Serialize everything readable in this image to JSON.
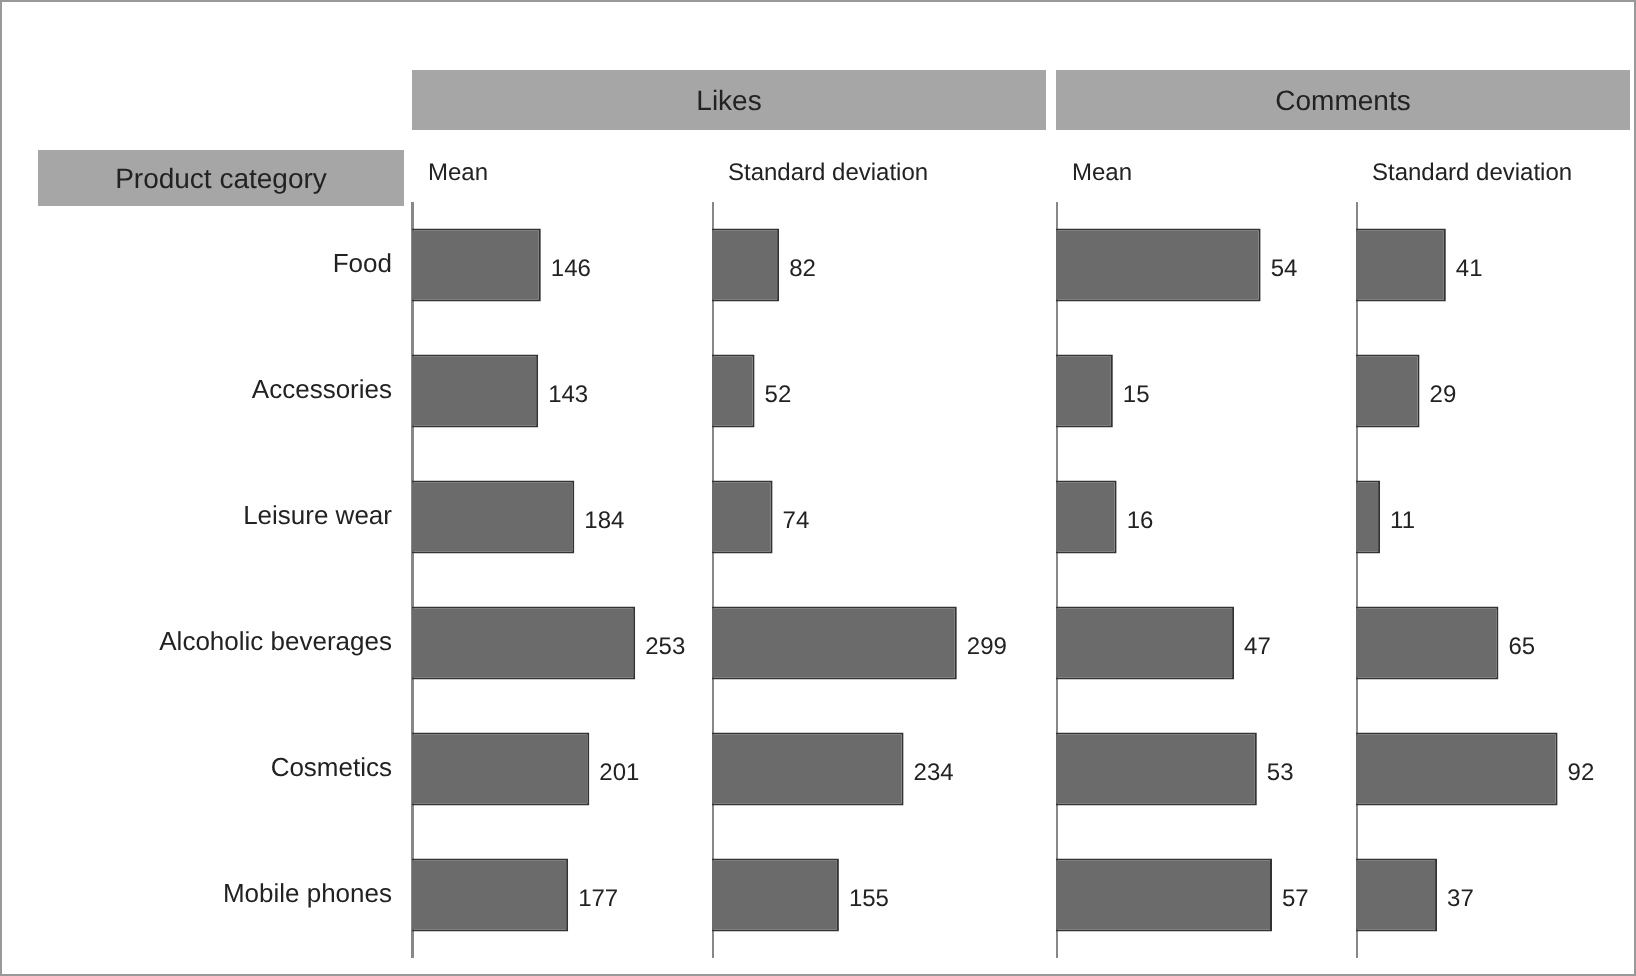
{
  "chart_data": [
    {
      "type": "bar",
      "orientation": "horizontal",
      "title": "Mean",
      "ylabel": "Product category",
      "annotations": [
        "Likes"
      ],
      "categories": [
        "Food",
        "Accessories",
        "Leisure wear",
        "Alcoholic beverages",
        "Cosmetics",
        "Mobile phones"
      ],
      "values": [
        146,
        143,
        184,
        253,
        201,
        177
      ],
      "color": "#6b6b6b",
      "data_labels": true,
      "tick_labels": "y"
    },
    {
      "type": "bar",
      "orientation": "horizontal",
      "title": "Standard deviation",
      "categories": [
        null,
        null,
        null,
        null,
        null,
        null
      ],
      "values": [
        82,
        52,
        74,
        299,
        234,
        155
      ],
      "color": "#6b6b6b",
      "data_labels": true,
      "tick_labels": false
    },
    {
      "type": "bar",
      "orientation": "horizontal",
      "title": "Mean",
      "annotations": [
        "Comments"
      ],
      "categories": [
        null,
        null,
        null,
        null,
        null,
        null
      ],
      "values": [
        54,
        15,
        16,
        47,
        53,
        57
      ],
      "color": "#6b6b6b",
      "data_labels": true,
      "tick_labels": false
    },
    {
      "type": "bar",
      "orientation": "horizontal",
      "title": "Standard deviation",
      "categories": [
        null,
        null,
        null,
        null,
        null,
        null
      ],
      "values": [
        41,
        29,
        11,
        65,
        92,
        37
      ],
      "color": "#6b6b6b",
      "data_labels": true,
      "tick_labels": false
    }
  ]
}
